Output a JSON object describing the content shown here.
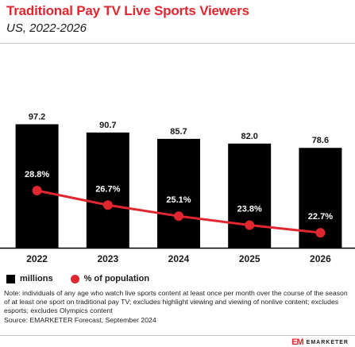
{
  "header": {
    "title": "Traditional Pay TV Live Sports Viewers",
    "subtitle": "US, 2022-2026"
  },
  "chart_data": {
    "type": "bar",
    "categories": [
      "2022",
      "2023",
      "2024",
      "2025",
      "2026"
    ],
    "series": [
      {
        "name": "millions",
        "kind": "bar",
        "color": "#000000",
        "values": [
          97.2,
          90.7,
          85.7,
          82.0,
          78.6
        ],
        "labels": [
          "97.2",
          "90.7",
          "85.7",
          "82.0",
          "78.6"
        ]
      },
      {
        "name": "% of population",
        "kind": "line",
        "color": "#e0262f",
        "values": [
          28.8,
          26.7,
          25.1,
          23.8,
          22.7
        ],
        "labels": [
          "28.8%",
          "26.7%",
          "25.1%",
          "23.8%",
          "22.7%"
        ]
      }
    ],
    "xlabel": "",
    "ylabel": "",
    "grid": false,
    "legend_position": "bottom-left"
  },
  "legend": {
    "bar_label": "millions",
    "line_label": "% of population"
  },
  "note": {
    "line1": "Note: individuals of any age who watch live sports content at least once per month over the course of the season of at least one sport on traditional pay TV; excludes highlight viewing and viewing of nonlive content; excludes esports; excludes Olympics content",
    "source": "Source: EMARKETER Forecast, September 2024"
  },
  "footer": {
    "logo_mark": "EM",
    "brand": "EMARKETER"
  }
}
